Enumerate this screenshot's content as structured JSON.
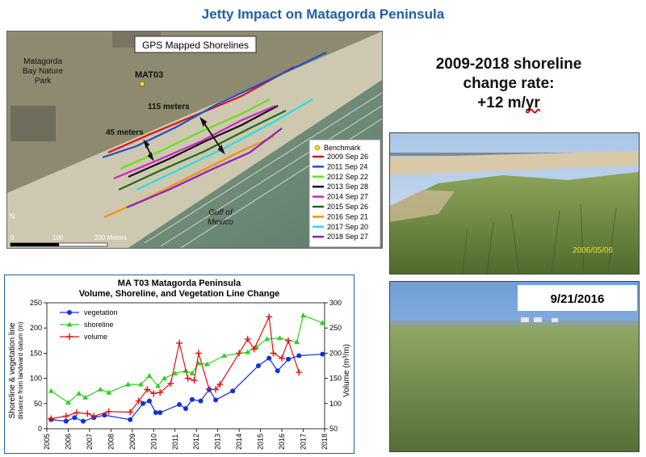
{
  "title": "Jetty Impact on Matagorda Peninsula",
  "rate_block": {
    "line1": "2009-2018 shoreline",
    "line2": "change rate:",
    "line3_prefix": "+12 m/",
    "line3_unit": "yr"
  },
  "map": {
    "heading": "GPS Mapped Shorelines",
    "park_label": [
      "Matagorda",
      "Bay Nature",
      "Park"
    ],
    "station": "MAT03",
    "dist_115": "115 meters",
    "dist_45": "45 meters",
    "water_label": [
      "Gulf of",
      "Mexico"
    ],
    "scale_labels": [
      "0",
      "100",
      "200 Meters"
    ],
    "north": "N",
    "legend_benchmark": "Benchmark",
    "shorelines": [
      {
        "label": "2009 Sep 26",
        "color": "#e01010"
      },
      {
        "label": "2011 Sep 24",
        "color": "#1a4fd0"
      },
      {
        "label": "2012 Sep 22",
        "color": "#66e020"
      },
      {
        "label": "2013 Sep 28",
        "color": "#111111"
      },
      {
        "label": "2014 Sep 27",
        "color": "#d020d0"
      },
      {
        "label": "2015 Sep 26",
        "color": "#1f6a1f"
      },
      {
        "label": "2016 Sep 21",
        "color": "#f09010"
      },
      {
        "label": "2017 Sep 20",
        "color": "#20e0e8"
      },
      {
        "label": "2018 Sep 27",
        "color": "#8a20c0"
      }
    ]
  },
  "photos": {
    "photo1_date": "2006/05/06",
    "photo2_date": "9/21/2016"
  },
  "chart_data": {
    "type": "line",
    "title": "MA T03 Matagorda Peninsula",
    "subtitle": "Volume, Shoreline, and Vegetation Line Change",
    "ylabel_left": "Shoreline & vegetation line",
    "ylabel_left2": "distance from landward datum (m)",
    "ylabel_right": "Volume (m³/m)",
    "xlim": [
      2005,
      2018
    ],
    "ylim_left": [
      0,
      250
    ],
    "ylim_right": [
      50,
      300
    ],
    "x_ticks": [
      2005,
      2006,
      2007,
      2008,
      2009,
      2010,
      2011,
      2012,
      2013,
      2014,
      2015,
      2016,
      2017,
      2018
    ],
    "y_ticks_left": [
      0,
      50,
      100,
      150,
      200,
      250
    ],
    "y_ticks_right": [
      50,
      100,
      150,
      200,
      250,
      300
    ],
    "legend": "top-left",
    "series": [
      {
        "name": "vegetation",
        "axis": "left",
        "color": "#1030e0",
        "marker": "circle",
        "points": [
          [
            2005.2,
            18
          ],
          [
            2005.9,
            15
          ],
          [
            2006.3,
            22
          ],
          [
            2006.7,
            15
          ],
          [
            2007.2,
            22
          ],
          [
            2007.7,
            27
          ],
          [
            2008.9,
            18
          ],
          [
            2009.5,
            50
          ],
          [
            2009.8,
            55
          ],
          [
            2010.1,
            32
          ],
          [
            2010.3,
            32
          ],
          [
            2011.2,
            48
          ],
          [
            2011.5,
            40
          ],
          [
            2011.8,
            58
          ],
          [
            2012.2,
            55
          ],
          [
            2012.6,
            78
          ],
          [
            2012.9,
            57
          ],
          [
            2013.7,
            75
          ],
          [
            2014.9,
            125
          ],
          [
            2015.4,
            140
          ],
          [
            2015.8,
            115
          ],
          [
            2016.3,
            138
          ],
          [
            2016.8,
            145
          ],
          [
            2017.9,
            148
          ]
        ]
      },
      {
        "name": "shoreline",
        "axis": "left",
        "color": "#30d020",
        "marker": "triangle",
        "points": [
          [
            2005.2,
            75
          ],
          [
            2006.0,
            52
          ],
          [
            2006.5,
            70
          ],
          [
            2006.8,
            62
          ],
          [
            2007.5,
            78
          ],
          [
            2007.9,
            72
          ],
          [
            2008.8,
            88
          ],
          [
            2009.4,
            88
          ],
          [
            2009.8,
            105
          ],
          [
            2010.2,
            85
          ],
          [
            2010.5,
            100
          ],
          [
            2011.0,
            110
          ],
          [
            2011.5,
            115
          ],
          [
            2011.8,
            110
          ],
          [
            2012.1,
            130
          ],
          [
            2012.5,
            128
          ],
          [
            2013.3,
            145
          ],
          [
            2014.4,
            152
          ],
          [
            2014.8,
            162
          ],
          [
            2015.3,
            178
          ],
          [
            2015.9,
            180
          ],
          [
            2016.7,
            172
          ],
          [
            2017.0,
            225
          ],
          [
            2017.9,
            210
          ]
        ]
      },
      {
        "name": "volume",
        "axis": "right",
        "color": "#e01010",
        "marker": "plus",
        "points": [
          [
            2005.2,
            70
          ],
          [
            2005.9,
            75
          ],
          [
            2006.4,
            82
          ],
          [
            2006.9,
            80
          ],
          [
            2007.2,
            75
          ],
          [
            2007.9,
            84
          ],
          [
            2008.9,
            83
          ],
          [
            2009.3,
            105
          ],
          [
            2009.7,
            128
          ],
          [
            2010.0,
            120
          ],
          [
            2010.3,
            122
          ],
          [
            2010.8,
            140
          ],
          [
            2011.2,
            220
          ],
          [
            2011.6,
            150
          ],
          [
            2011.9,
            146
          ],
          [
            2012.1,
            200
          ],
          [
            2012.6,
            128
          ],
          [
            2012.9,
            128
          ],
          [
            2013.1,
            138
          ],
          [
            2014.0,
            200
          ],
          [
            2014.4,
            228
          ],
          [
            2014.7,
            208
          ],
          [
            2015.4,
            272
          ],
          [
            2015.6,
            200
          ],
          [
            2016.0,
            190
          ],
          [
            2016.3,
            225
          ],
          [
            2016.8,
            162
          ]
        ]
      }
    ]
  }
}
